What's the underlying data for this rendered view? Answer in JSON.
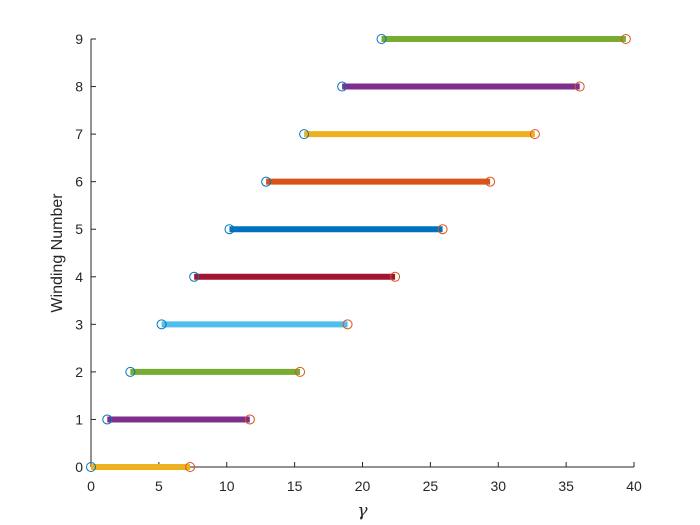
{
  "chart_data": {
    "type": "line",
    "title": "",
    "xlabel": "γ",
    "ylabel": "Winding Number",
    "xlim": [
      0,
      40
    ],
    "ylim": [
      0,
      9
    ],
    "xticks": [
      0,
      5,
      10,
      15,
      20,
      25,
      30,
      35,
      40
    ],
    "yticks": [
      0,
      1,
      2,
      3,
      4,
      5,
      6,
      7,
      8,
      9
    ],
    "grid": false,
    "legend": "none",
    "start_marker_color": "#0072BD",
    "end_marker_color": "#D95319",
    "series": [
      {
        "winding": 0,
        "start": 0.0,
        "end": 7.3,
        "color": "#EDB120"
      },
      {
        "winding": 1,
        "start": 1.2,
        "end": 11.7,
        "color": "#7E2F8E"
      },
      {
        "winding": 2,
        "start": 2.9,
        "end": 15.4,
        "color": "#77AC30"
      },
      {
        "winding": 3,
        "start": 5.2,
        "end": 18.9,
        "color": "#4DBEEE"
      },
      {
        "winding": 4,
        "start": 7.6,
        "end": 22.4,
        "color": "#A2142F"
      },
      {
        "winding": 5,
        "start": 10.2,
        "end": 25.9,
        "color": "#0072BD"
      },
      {
        "winding": 6,
        "start": 12.9,
        "end": 29.4,
        "color": "#D95319"
      },
      {
        "winding": 7,
        "start": 15.7,
        "end": 32.7,
        "color": "#EDB120"
      },
      {
        "winding": 8,
        "start": 18.5,
        "end": 36.0,
        "color": "#7E2F8E"
      },
      {
        "winding": 9,
        "start": 21.4,
        "end": 39.4,
        "color": "#77AC30"
      }
    ]
  }
}
